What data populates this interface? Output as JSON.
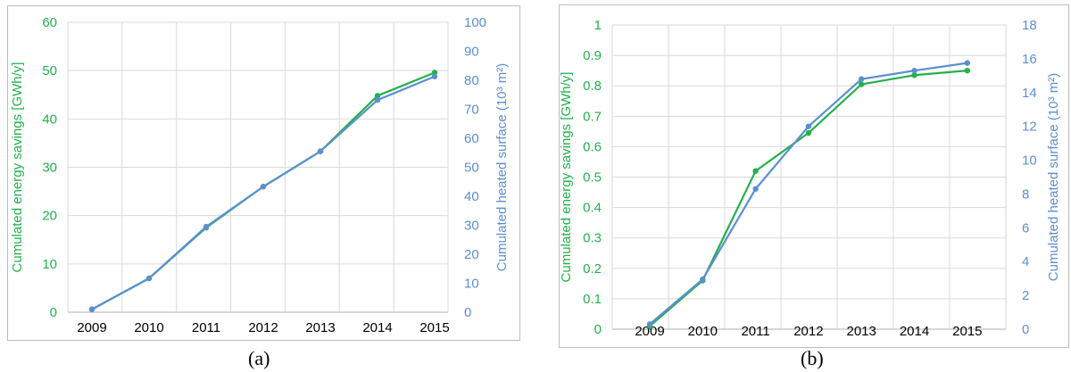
{
  "captions": [
    "(a)",
    "(b)"
  ],
  "colors": {
    "left_series": "#22b14c",
    "right_series": "#5b8fd0",
    "grid": "#d9d9d9",
    "axis": "#bfbfbf"
  },
  "chart_data": [
    {
      "type": "line",
      "title": "",
      "categories": [
        "2009",
        "2010",
        "2011",
        "2012",
        "2013",
        "2014",
        "2015"
      ],
      "ylabel_left": "Cumulated energy savings [GWh/y]",
      "ylabel_right": "Cumulated heated surface (10³ m²)",
      "ylim_left": [
        0,
        60
      ],
      "ylim_right": [
        0,
        100
      ],
      "yticks_left": [
        "0",
        "10",
        "20",
        "30",
        "40",
        "50",
        "60"
      ],
      "yticks_right": [
        "0",
        "10",
        "20",
        "30",
        "40",
        "50",
        "60",
        "70",
        "80",
        "90",
        "100"
      ],
      "grid": true,
      "series": [
        {
          "name": "Cumulated energy savings [GWh/y]",
          "axis": "left",
          "color": "#22b14c",
          "values": [
            0.6,
            7.0,
            17.5,
            26.0,
            33.3,
            44.8,
            49.6
          ]
        },
        {
          "name": "Cumulated heated surface (10³ m²)",
          "axis": "right",
          "color": "#5b8fd0",
          "values": [
            1.0,
            11.7,
            29.5,
            43.3,
            55.5,
            73.2,
            81.3
          ]
        }
      ]
    },
    {
      "type": "line",
      "title": "",
      "categories": [
        "2009",
        "2010",
        "2011",
        "2012",
        "2013",
        "2014",
        "2015"
      ],
      "ylabel_left": "Cumulated energy savings [GWh/y]",
      "ylabel_right": "Cumulated heated surface (10³ m²)",
      "ylim_left": [
        0,
        1
      ],
      "ylim_right": [
        0,
        18
      ],
      "yticks_left": [
        "0",
        "0.1",
        "0.2",
        "0.3",
        "0.4",
        "0.5",
        "0.6",
        "0.7",
        "0.8",
        "0.9",
        "1"
      ],
      "yticks_right": [
        "0",
        "2",
        "4",
        "6",
        "8",
        "10",
        "12",
        "14",
        "16",
        "18"
      ],
      "grid": true,
      "series": [
        {
          "name": "Cumulated energy savings [GWh/y]",
          "axis": "left",
          "color": "#22b14c",
          "values": [
            0.01,
            0.16,
            0.52,
            0.645,
            0.805,
            0.835,
            0.85
          ]
        },
        {
          "name": "Cumulated heated surface (10³ m²)",
          "axis": "right",
          "color": "#5b8fd0",
          "values": [
            0.3,
            2.95,
            8.3,
            12.0,
            14.8,
            15.3,
            15.75
          ]
        }
      ]
    }
  ]
}
